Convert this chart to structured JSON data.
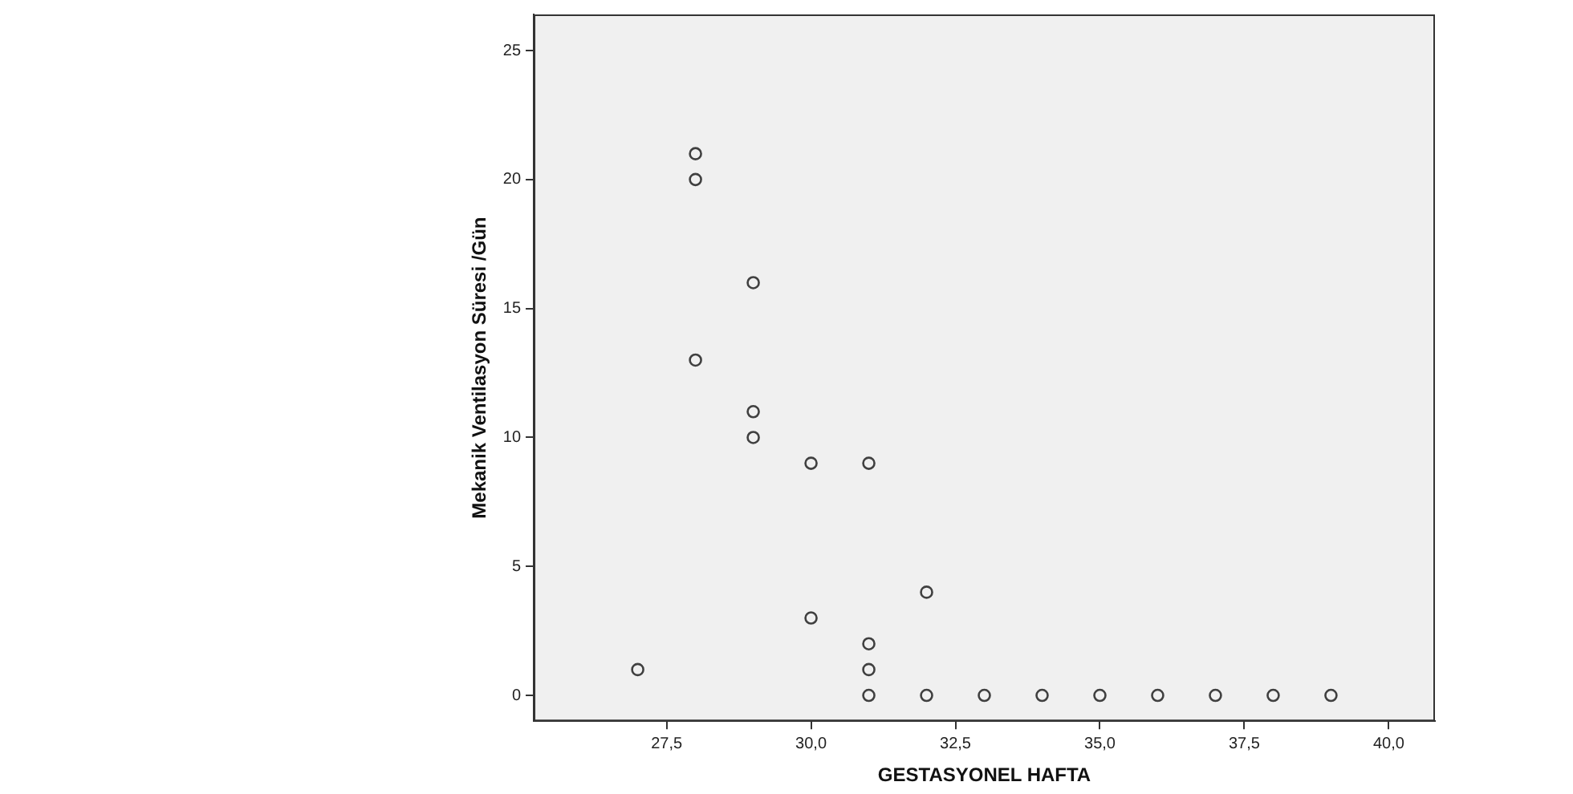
{
  "chart_data": {
    "type": "scatter",
    "xlabel": "GESTASYONEL HAFTA",
    "ylabel": "Mekanik Ventilasyon Süresi /Gün",
    "x": [
      27,
      28,
      28,
      28,
      29,
      29,
      29,
      30,
      30,
      31,
      31,
      31,
      31,
      32,
      32,
      33,
      34,
      35,
      36,
      37,
      38,
      39
    ],
    "values": [
      1,
      21,
      20,
      13,
      16,
      11,
      10,
      9,
      3,
      9,
      2,
      1,
      0,
      4,
      0,
      0,
      0,
      0,
      0,
      0,
      0,
      0
    ],
    "color": "#404040",
    "marker": "circle",
    "grid": false,
    "legend": false,
    "xlim": [
      25.2,
      40.8
    ],
    "xticks": [
      {
        "value": 27.5,
        "label": "27,5"
      },
      {
        "value": 30,
        "label": "30,0"
      },
      {
        "value": 32.5,
        "label": "32,5"
      },
      {
        "value": 35,
        "label": "35,0"
      },
      {
        "value": 37.5,
        "label": "37,5"
      },
      {
        "value": 40,
        "label": "40,0"
      }
    ],
    "ylim": [
      -1,
      26.4
    ],
    "yticks": [
      0,
      5,
      10,
      15,
      20,
      25
    ]
  }
}
